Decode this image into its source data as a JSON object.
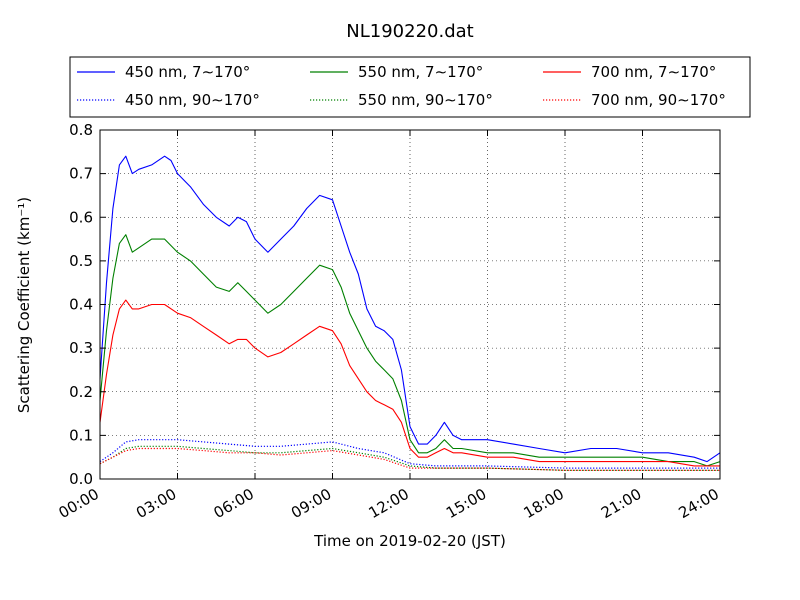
{
  "chart_data": {
    "type": "line",
    "title": "NL190220.dat",
    "xlabel": "Time on 2019-02-20 (JST)",
    "ylabel": "Scattering Coefficient (km⁻¹)",
    "xlim": [
      "00:00",
      "24:00"
    ],
    "ylim": [
      0.0,
      0.8
    ],
    "xticks": [
      "00:00",
      "03:00",
      "06:00",
      "09:00",
      "12:00",
      "15:00",
      "18:00",
      "21:00",
      "24:00"
    ],
    "yticks": [
      "0.0",
      "0.1",
      "0.2",
      "0.3",
      "0.4",
      "0.5",
      "0.6",
      "0.7",
      "0.8"
    ],
    "grid": true,
    "legend_position": "top",
    "series": [
      {
        "name": "450 nm, 7∼170°",
        "color": "#0000ff",
        "style": "solid",
        "x": [
          "00:00",
          "00:15",
          "00:30",
          "00:45",
          "01:00",
          "01:15",
          "01:30",
          "02:00",
          "02:30",
          "02:45",
          "03:00",
          "03:30",
          "04:00",
          "04:30",
          "05:00",
          "05:20",
          "05:40",
          "06:00",
          "06:30",
          "07:00",
          "07:30",
          "08:00",
          "08:30",
          "09:00",
          "09:20",
          "09:40",
          "10:00",
          "10:20",
          "10:40",
          "11:00",
          "11:20",
          "11:40",
          "12:00",
          "12:20",
          "12:40",
          "13:00",
          "13:20",
          "13:40",
          "14:00",
          "14:30",
          "15:00",
          "16:00",
          "17:00",
          "18:00",
          "19:00",
          "20:00",
          "21:00",
          "22:00",
          "23:00",
          "23:30",
          "24:00"
        ],
        "values": [
          0.23,
          0.45,
          0.62,
          0.72,
          0.74,
          0.7,
          0.71,
          0.72,
          0.74,
          0.73,
          0.7,
          0.67,
          0.63,
          0.6,
          0.58,
          0.6,
          0.59,
          0.55,
          0.52,
          0.55,
          0.58,
          0.62,
          0.65,
          0.64,
          0.58,
          0.52,
          0.47,
          0.39,
          0.35,
          0.34,
          0.32,
          0.25,
          0.12,
          0.08,
          0.08,
          0.1,
          0.13,
          0.1,
          0.09,
          0.09,
          0.09,
          0.08,
          0.07,
          0.06,
          0.07,
          0.07,
          0.06,
          0.06,
          0.05,
          0.04,
          0.06
        ]
      },
      {
        "name": "450 nm, 90∼170°",
        "color": "#0000ff",
        "style": "dotted",
        "x": [
          "00:00",
          "00:30",
          "01:00",
          "01:30",
          "02:00",
          "03:00",
          "04:00",
          "05:00",
          "06:00",
          "07:00",
          "08:00",
          "09:00",
          "10:00",
          "11:00",
          "12:00",
          "13:00",
          "15:00",
          "18:00",
          "21:00",
          "24:00"
        ],
        "values": [
          0.04,
          0.06,
          0.085,
          0.09,
          0.09,
          0.09,
          0.085,
          0.08,
          0.075,
          0.075,
          0.08,
          0.085,
          0.07,
          0.06,
          0.035,
          0.03,
          0.03,
          0.025,
          0.025,
          0.025
        ]
      },
      {
        "name": "550 nm, 7∼170°",
        "color": "#008000",
        "style": "solid",
        "x": [
          "00:00",
          "00:15",
          "00:30",
          "00:45",
          "01:00",
          "01:15",
          "01:30",
          "02:00",
          "02:30",
          "03:00",
          "03:30",
          "04:00",
          "04:30",
          "05:00",
          "05:20",
          "05:40",
          "06:00",
          "06:30",
          "07:00",
          "07:30",
          "08:00",
          "08:30",
          "09:00",
          "09:20",
          "09:40",
          "10:00",
          "10:20",
          "10:40",
          "11:00",
          "11:20",
          "11:40",
          "12:00",
          "12:20",
          "12:40",
          "13:00",
          "13:20",
          "13:40",
          "14:00",
          "15:00",
          "16:00",
          "17:00",
          "18:00",
          "19:00",
          "20:00",
          "21:00",
          "22:00",
          "23:00",
          "23:30",
          "24:00"
        ],
        "values": [
          0.18,
          0.34,
          0.46,
          0.54,
          0.56,
          0.52,
          0.53,
          0.55,
          0.55,
          0.52,
          0.5,
          0.47,
          0.44,
          0.43,
          0.45,
          0.43,
          0.41,
          0.38,
          0.4,
          0.43,
          0.46,
          0.49,
          0.48,
          0.44,
          0.38,
          0.34,
          0.3,
          0.27,
          0.25,
          0.23,
          0.18,
          0.09,
          0.06,
          0.06,
          0.07,
          0.09,
          0.07,
          0.07,
          0.06,
          0.06,
          0.05,
          0.05,
          0.05,
          0.05,
          0.05,
          0.04,
          0.04,
          0.03,
          0.04
        ]
      },
      {
        "name": "550 nm, 90∼170°",
        "color": "#008000",
        "style": "dotted",
        "x": [
          "00:00",
          "00:30",
          "01:00",
          "01:30",
          "02:00",
          "03:00",
          "04:00",
          "05:00",
          "06:00",
          "07:00",
          "08:00",
          "09:00",
          "10:00",
          "11:00",
          "12:00",
          "13:00",
          "15:00",
          "18:00",
          "21:00",
          "24:00"
        ],
        "values": [
          0.035,
          0.05,
          0.07,
          0.075,
          0.075,
          0.075,
          0.07,
          0.065,
          0.06,
          0.06,
          0.065,
          0.07,
          0.06,
          0.05,
          0.03,
          0.025,
          0.025,
          0.02,
          0.02,
          0.02
        ]
      },
      {
        "name": "700 nm, 7∼170°",
        "color": "#ff0000",
        "style": "solid",
        "x": [
          "00:00",
          "00:15",
          "00:30",
          "00:45",
          "01:00",
          "01:15",
          "01:30",
          "02:00",
          "02:30",
          "03:00",
          "03:30",
          "04:00",
          "04:30",
          "05:00",
          "05:20",
          "05:40",
          "06:00",
          "06:30",
          "07:00",
          "07:30",
          "08:00",
          "08:30",
          "09:00",
          "09:20",
          "09:40",
          "10:00",
          "10:20",
          "10:40",
          "11:00",
          "11:20",
          "11:40",
          "12:00",
          "12:20",
          "12:40",
          "13:00",
          "13:20",
          "13:40",
          "14:00",
          "15:00",
          "16:00",
          "17:00",
          "18:00",
          "19:00",
          "20:00",
          "21:00",
          "22:00",
          "23:00",
          "23:30",
          "24:00"
        ],
        "values": [
          0.13,
          0.24,
          0.33,
          0.39,
          0.41,
          0.39,
          0.39,
          0.4,
          0.4,
          0.38,
          0.37,
          0.35,
          0.33,
          0.31,
          0.32,
          0.32,
          0.3,
          0.28,
          0.29,
          0.31,
          0.33,
          0.35,
          0.34,
          0.31,
          0.26,
          0.23,
          0.2,
          0.18,
          0.17,
          0.16,
          0.13,
          0.07,
          0.05,
          0.05,
          0.06,
          0.07,
          0.06,
          0.06,
          0.05,
          0.05,
          0.04,
          0.04,
          0.04,
          0.04,
          0.04,
          0.04,
          0.03,
          0.03,
          0.03
        ]
      },
      {
        "name": "700 nm, 90∼170°",
        "color": "#ff0000",
        "style": "dotted",
        "x": [
          "00:00",
          "00:30",
          "01:00",
          "01:30",
          "02:00",
          "03:00",
          "04:00",
          "05:00",
          "06:00",
          "07:00",
          "08:00",
          "09:00",
          "10:00",
          "11:00",
          "12:00",
          "13:00",
          "15:00",
          "18:00",
          "21:00",
          "24:00"
        ],
        "values": [
          0.035,
          0.05,
          0.065,
          0.07,
          0.07,
          0.07,
          0.065,
          0.06,
          0.06,
          0.055,
          0.06,
          0.065,
          0.055,
          0.045,
          0.025,
          0.025,
          0.025,
          0.02,
          0.02,
          0.02
        ]
      }
    ]
  }
}
